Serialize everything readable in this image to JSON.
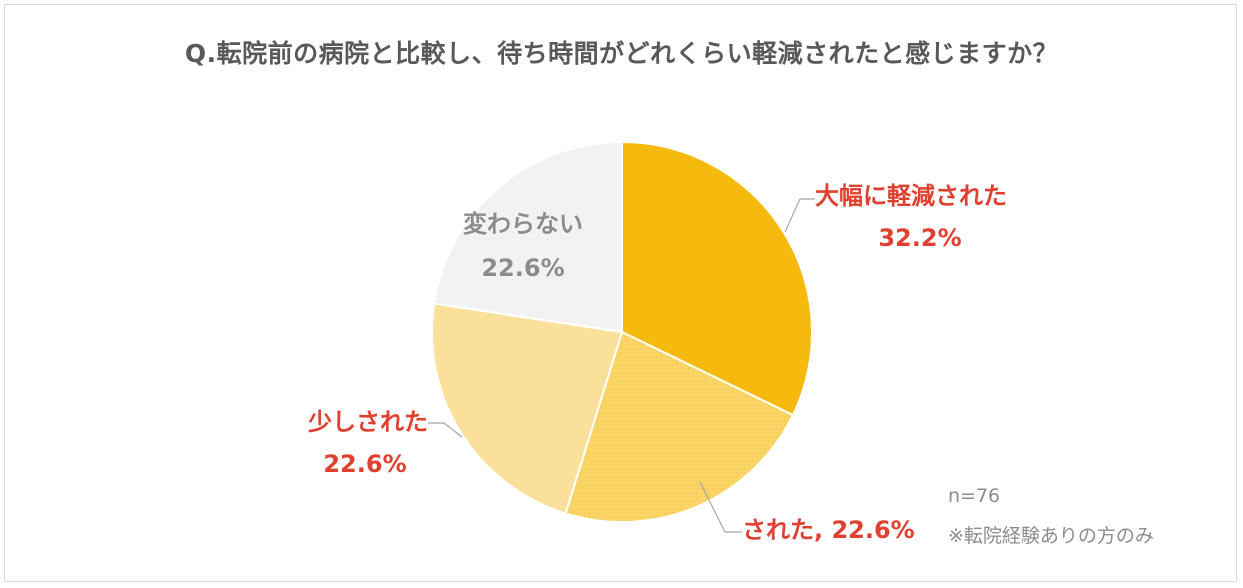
{
  "chart_data": {
    "type": "pie",
    "title": "Q.転院前の病院と比較し、待ち時間がどれくらい軽減されたと感じますか？",
    "slices": [
      {
        "name": "大幅に軽減された",
        "value": 32.2,
        "label": "32.2%",
        "color": "#f6b90d"
      },
      {
        "name": "された",
        "value": 22.6,
        "label": "22.6%",
        "color": "#fad465"
      },
      {
        "name": "少しされた",
        "value": 22.6,
        "label": "22.6%",
        "color": "#fbe09c"
      },
      {
        "name": "変わらない",
        "value": 22.6,
        "label": "22.6%",
        "color": "#f2f2f2"
      }
    ]
  },
  "labels": {
    "slice0_name": "大幅に軽減された",
    "slice0_pct": "32.2%",
    "slice1_combined": "された, 22.6%",
    "slice2_name": "少しされた",
    "slice2_pct": "22.6%",
    "slice3_name": "変わらない",
    "slice3_pct": "22.6%"
  },
  "notes": {
    "sample_size": "n=76",
    "footnote": "※転院経験ありの方のみ"
  }
}
